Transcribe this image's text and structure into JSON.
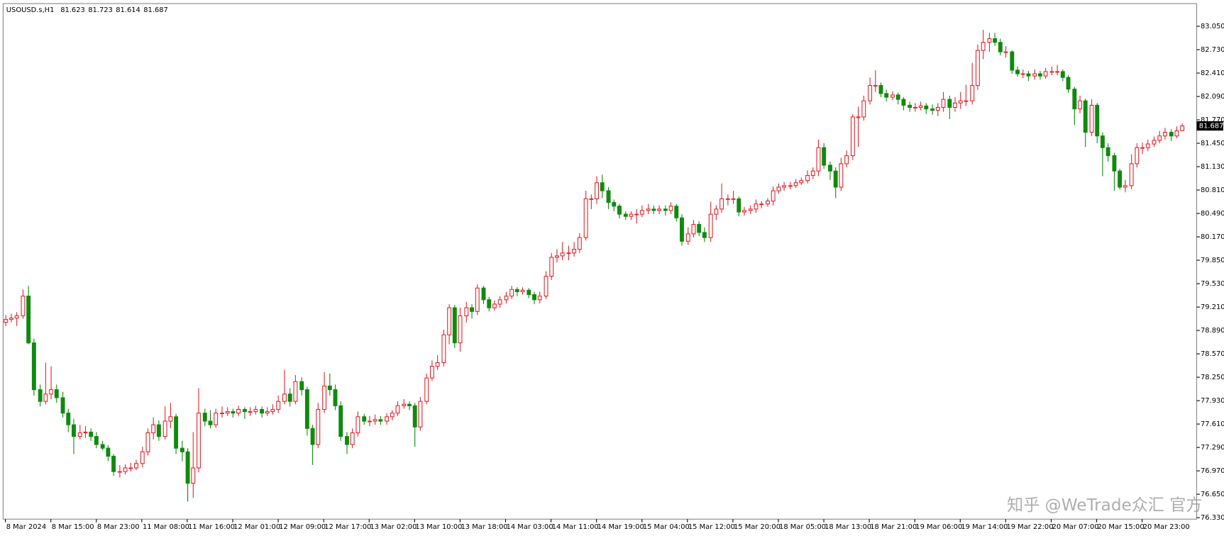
{
  "chart_data": {
    "type": "candlestick",
    "symbol": "USOUSD.s,H1",
    "header_ohlc": [
      81.623,
      81.723,
      81.614,
      81.687
    ],
    "last_price": 81.687,
    "watermark": "知乎 @WeTrade众汇 官方",
    "up_color": "#e0262d",
    "down_color": "#0f8a0f",
    "grid": false,
    "ylim": [
      76.32,
      83.36
    ],
    "yticks": [
      {
        "value": 76.33,
        "label": "76.330"
      },
      {
        "value": 76.65,
        "label": "76.650"
      },
      {
        "value": 76.97,
        "label": "76.970"
      },
      {
        "value": 77.29,
        "label": "77.290"
      },
      {
        "value": 77.61,
        "label": "77.610"
      },
      {
        "value": 77.93,
        "label": "77.930"
      },
      {
        "value": 78.25,
        "label": "78.250"
      },
      {
        "value": 78.57,
        "label": "78.570"
      },
      {
        "value": 78.89,
        "label": "78.890"
      },
      {
        "value": 79.21,
        "label": "79.210"
      },
      {
        "value": 79.53,
        "label": "79.530"
      },
      {
        "value": 79.85,
        "label": "79.850"
      },
      {
        "value": 80.17,
        "label": "80.170"
      },
      {
        "value": 80.49,
        "label": "80.490"
      },
      {
        "value": 80.81,
        "label": "80.810"
      },
      {
        "value": 81.13,
        "label": "81.130"
      },
      {
        "value": 81.45,
        "label": "81.450"
      },
      {
        "value": 81.77,
        "label": "81.770"
      },
      {
        "value": 82.09,
        "label": "82.090"
      },
      {
        "value": 82.41,
        "label": "82.410"
      },
      {
        "value": 82.73,
        "label": "82.730"
      },
      {
        "value": 83.05,
        "label": "83.050"
      }
    ],
    "xlim": [
      -0.4,
      209.6
    ],
    "xticks": [
      {
        "value": 0,
        "label": "8 Mar 2024"
      },
      {
        "value": 8,
        "label": "8 Mar 15:00"
      },
      {
        "value": 16,
        "label": "8 Mar 23:00"
      },
      {
        "value": 24,
        "label": "11 Mar 08:00"
      },
      {
        "value": 32,
        "label": "11 Mar 16:00"
      },
      {
        "value": 40,
        "label": "12 Mar 01:00"
      },
      {
        "value": 48,
        "label": "12 Mar 09:00"
      },
      {
        "value": 56,
        "label": "12 Mar 17:00"
      },
      {
        "value": 64,
        "label": "13 Mar 02:00"
      },
      {
        "value": 72,
        "label": "13 Mar 10:00"
      },
      {
        "value": 80,
        "label": "13 Mar 18:00"
      },
      {
        "value": 88,
        "label": "14 Mar 03:00"
      },
      {
        "value": 96,
        "label": "14 Mar 11:00"
      },
      {
        "value": 104,
        "label": "14 Mar 19:00"
      },
      {
        "value": 112,
        "label": "15 Mar 04:00"
      },
      {
        "value": 120,
        "label": "15 Mar 12:00"
      },
      {
        "value": 128,
        "label": "15 Mar 20:00"
      },
      {
        "value": 136,
        "label": "18 Mar 05:00"
      },
      {
        "value": 144,
        "label": "18 Mar 13:00"
      },
      {
        "value": 152,
        "label": "18 Mar 21:00"
      },
      {
        "value": 160,
        "label": "19 Mar 06:00"
      },
      {
        "value": 168,
        "label": "19 Mar 14:00"
      },
      {
        "value": 176,
        "label": "19 Mar 22:00"
      },
      {
        "value": 184,
        "label": "20 Mar 07:00"
      },
      {
        "value": 192,
        "label": "20 Mar 15:00"
      },
      {
        "value": 200,
        "label": "20 Mar 23:00"
      }
    ],
    "ohlc": [
      [
        79.0,
        79.1,
        78.95,
        79.04
      ],
      [
        79.04,
        79.12,
        79.0,
        79.06
      ],
      [
        79.06,
        79.14,
        78.95,
        79.09
      ],
      [
        79.09,
        79.45,
        79.05,
        79.36
      ],
      [
        79.36,
        79.5,
        78.7,
        78.72
      ],
      [
        78.72,
        78.78,
        78.0,
        78.08
      ],
      [
        78.08,
        78.15,
        77.85,
        77.92
      ],
      [
        77.92,
        78.45,
        77.88,
        78.02
      ],
      [
        78.02,
        78.4,
        77.95,
        78.08
      ],
      [
        78.08,
        78.15,
        77.9,
        77.97
      ],
      [
        77.97,
        78.05,
        77.7,
        77.76
      ],
      [
        77.76,
        77.82,
        77.5,
        77.6
      ],
      [
        77.6,
        77.68,
        77.2,
        77.44
      ],
      [
        77.44,
        77.6,
        77.4,
        77.49
      ],
      [
        77.49,
        77.58,
        77.42,
        77.5
      ],
      [
        77.5,
        77.55,
        77.38,
        77.44
      ],
      [
        77.44,
        77.5,
        77.28,
        77.33
      ],
      [
        77.33,
        77.38,
        77.25,
        77.28
      ],
      [
        77.28,
        77.32,
        77.1,
        77.17
      ],
      [
        77.17,
        77.2,
        76.9,
        76.96
      ],
      [
        76.96,
        77.05,
        76.88,
        76.96
      ],
      [
        76.96,
        77.06,
        76.92,
        77.01
      ],
      [
        77.01,
        77.08,
        76.96,
        77.01
      ],
      [
        77.01,
        77.12,
        76.98,
        77.07
      ],
      [
        77.07,
        77.3,
        77.02,
        77.23
      ],
      [
        77.23,
        77.55,
        77.18,
        77.49
      ],
      [
        77.49,
        77.7,
        77.4,
        77.6
      ],
      [
        77.6,
        77.66,
        77.38,
        77.44
      ],
      [
        77.44,
        77.85,
        77.4,
        77.65
      ],
      [
        77.65,
        77.9,
        77.55,
        77.71
      ],
      [
        77.71,
        77.75,
        77.2,
        77.28
      ],
      [
        77.28,
        77.38,
        77.1,
        77.23
      ],
      [
        77.23,
        77.28,
        76.55,
        76.8
      ],
      [
        76.8,
        77.5,
        76.6,
        77.01
      ],
      [
        77.01,
        78.1,
        76.95,
        77.76
      ],
      [
        77.76,
        77.82,
        77.58,
        77.65
      ],
      [
        77.65,
        77.8,
        77.55,
        77.6
      ],
      [
        77.6,
        77.82,
        77.56,
        77.76
      ],
      [
        77.76,
        77.85,
        77.7,
        77.76
      ],
      [
        77.76,
        77.84,
        77.72,
        77.78
      ],
      [
        77.78,
        77.82,
        77.7,
        77.76
      ],
      [
        77.76,
        77.86,
        77.72,
        77.81
      ],
      [
        77.81,
        77.84,
        77.68,
        77.78
      ],
      [
        77.78,
        77.84,
        77.72,
        77.78
      ],
      [
        77.78,
        77.86,
        77.74,
        77.81
      ],
      [
        77.81,
        77.85,
        77.7,
        77.76
      ],
      [
        77.76,
        77.84,
        77.72,
        77.78
      ],
      [
        77.78,
        77.88,
        77.74,
        77.81
      ],
      [
        77.81,
        78.0,
        77.76,
        77.92
      ],
      [
        77.92,
        78.35,
        77.88,
        78.02
      ],
      [
        78.02,
        78.1,
        77.85,
        77.92
      ],
      [
        77.92,
        78.28,
        77.88,
        78.19
      ],
      [
        78.19,
        78.25,
        78.0,
        78.08
      ],
      [
        78.08,
        78.12,
        77.45,
        77.55
      ],
      [
        77.55,
        77.6,
        77.05,
        77.33
      ],
      [
        77.33,
        77.9,
        77.28,
        77.81
      ],
      [
        77.81,
        78.32,
        77.76,
        78.13
      ],
      [
        78.13,
        78.3,
        78.0,
        78.08
      ],
      [
        78.08,
        78.15,
        77.8,
        77.86
      ],
      [
        77.86,
        77.92,
        77.38,
        77.44
      ],
      [
        77.44,
        77.5,
        77.2,
        77.33
      ],
      [
        77.33,
        77.55,
        77.28,
        77.49
      ],
      [
        77.49,
        77.78,
        77.44,
        77.71
      ],
      [
        77.71,
        77.75,
        77.6,
        77.65
      ],
      [
        77.65,
        77.72,
        77.58,
        77.65
      ],
      [
        77.65,
        77.74,
        77.6,
        77.67
      ],
      [
        77.67,
        77.72,
        77.6,
        77.65
      ],
      [
        77.65,
        77.76,
        77.6,
        77.71
      ],
      [
        77.71,
        77.8,
        77.66,
        77.76
      ],
      [
        77.76,
        77.92,
        77.72,
        77.86
      ],
      [
        77.86,
        77.95,
        77.82,
        77.88
      ],
      [
        77.88,
        77.92,
        77.8,
        77.86
      ],
      [
        77.86,
        77.9,
        77.3,
        77.57
      ],
      [
        77.57,
        77.98,
        77.52,
        77.92
      ],
      [
        77.92,
        78.3,
        77.88,
        78.24
      ],
      [
        78.24,
        78.48,
        78.2,
        78.4
      ],
      [
        78.4,
        78.55,
        78.35,
        78.45
      ],
      [
        78.45,
        78.9,
        78.4,
        78.83
      ],
      [
        78.83,
        79.25,
        78.7,
        79.2
      ],
      [
        79.2,
        79.24,
        78.65,
        78.72
      ],
      [
        78.72,
        79.2,
        78.6,
        79.09
      ],
      [
        79.09,
        79.28,
        79.0,
        79.2
      ],
      [
        79.2,
        79.25,
        79.05,
        79.15
      ],
      [
        79.15,
        79.52,
        79.1,
        79.47
      ],
      [
        79.47,
        79.5,
        79.25,
        79.31
      ],
      [
        79.31,
        79.35,
        79.15,
        79.2
      ],
      [
        79.2,
        79.3,
        79.16,
        79.25
      ],
      [
        79.25,
        79.36,
        79.2,
        79.31
      ],
      [
        79.31,
        79.42,
        79.26,
        79.36
      ],
      [
        79.36,
        79.5,
        79.32,
        79.45
      ],
      [
        79.45,
        79.48,
        79.36,
        79.42
      ],
      [
        79.42,
        79.48,
        79.38,
        79.44
      ],
      [
        79.44,
        79.47,
        79.33,
        79.38
      ],
      [
        79.38,
        79.42,
        79.25,
        79.31
      ],
      [
        79.31,
        79.42,
        79.26,
        79.36
      ],
      [
        79.36,
        79.7,
        79.32,
        79.63
      ],
      [
        79.63,
        79.95,
        79.58,
        79.89
      ],
      [
        79.89,
        80.0,
        79.82,
        79.91
      ],
      [
        79.91,
        80.1,
        79.85,
        79.95
      ],
      [
        79.95,
        80.05,
        79.85,
        79.95
      ],
      [
        79.95,
        80.1,
        79.9,
        80.0
      ],
      [
        80.0,
        80.22,
        79.95,
        80.16
      ],
      [
        80.16,
        80.8,
        80.12,
        80.69
      ],
      [
        80.69,
        80.75,
        80.55,
        80.69
      ],
      [
        80.69,
        81.0,
        80.62,
        80.91
      ],
      [
        80.91,
        81.02,
        80.7,
        80.8
      ],
      [
        80.8,
        80.85,
        80.55,
        80.64
      ],
      [
        80.64,
        80.68,
        80.52,
        80.59
      ],
      [
        80.59,
        80.62,
        80.42,
        80.48
      ],
      [
        80.48,
        80.52,
        80.4,
        80.45
      ],
      [
        80.45,
        80.52,
        80.4,
        80.48
      ],
      [
        80.48,
        80.55,
        80.35,
        80.48
      ],
      [
        80.48,
        80.6,
        80.44,
        80.53
      ],
      [
        80.53,
        80.62,
        80.48,
        80.55
      ],
      [
        80.55,
        80.6,
        80.48,
        80.53
      ],
      [
        80.53,
        80.6,
        80.48,
        80.55
      ],
      [
        80.55,
        80.6,
        80.46,
        80.53
      ],
      [
        80.53,
        80.64,
        80.48,
        80.59
      ],
      [
        80.59,
        80.62,
        80.38,
        80.43
      ],
      [
        80.43,
        80.48,
        80.05,
        80.11
      ],
      [
        80.11,
        80.3,
        80.06,
        80.21
      ],
      [
        80.21,
        80.4,
        80.16,
        80.34
      ],
      [
        80.34,
        80.38,
        80.18,
        80.23
      ],
      [
        80.23,
        80.3,
        80.1,
        80.16
      ],
      [
        80.16,
        80.65,
        80.1,
        80.48
      ],
      [
        80.48,
        80.6,
        80.4,
        80.55
      ],
      [
        80.55,
        80.9,
        80.5,
        80.69
      ],
      [
        80.69,
        80.75,
        80.6,
        80.69
      ],
      [
        80.69,
        80.8,
        80.62,
        80.69
      ],
      [
        80.69,
        80.72,
        80.45,
        80.51
      ],
      [
        80.51,
        80.58,
        80.46,
        80.53
      ],
      [
        80.53,
        80.6,
        80.48,
        80.55
      ],
      [
        80.55,
        80.68,
        80.5,
        80.62
      ],
      [
        80.62,
        80.66,
        80.56,
        80.62
      ],
      [
        80.62,
        80.7,
        80.58,
        80.66
      ],
      [
        80.66,
        80.86,
        80.6,
        80.8
      ],
      [
        80.8,
        80.9,
        80.76,
        80.85
      ],
      [
        80.85,
        80.92,
        80.8,
        80.87
      ],
      [
        80.87,
        80.92,
        80.82,
        80.87
      ],
      [
        80.87,
        80.96,
        80.84,
        80.91
      ],
      [
        80.91,
        80.98,
        80.88,
        80.94
      ],
      [
        80.94,
        81.08,
        80.9,
        81.01
      ],
      [
        81.01,
        81.12,
        80.96,
        81.07
      ],
      [
        81.07,
        81.5,
        81.0,
        81.39
      ],
      [
        81.39,
        81.45,
        81.1,
        81.15
      ],
      [
        81.15,
        81.2,
        80.95,
        81.07
      ],
      [
        81.07,
        81.12,
        80.7,
        80.85
      ],
      [
        80.85,
        81.25,
        80.8,
        81.17
      ],
      [
        81.17,
        81.35,
        81.12,
        81.28
      ],
      [
        81.28,
        81.85,
        81.22,
        81.81
      ],
      [
        81.81,
        81.95,
        81.4,
        81.81
      ],
      [
        81.81,
        82.1,
        81.76,
        82.03
      ],
      [
        82.03,
        82.35,
        81.98,
        82.24
      ],
      [
        82.24,
        82.45,
        82.15,
        82.24
      ],
      [
        82.24,
        82.28,
        82.08,
        82.13
      ],
      [
        82.13,
        82.18,
        82.02,
        82.08
      ],
      [
        82.08,
        82.16,
        82.04,
        82.11
      ],
      [
        82.11,
        82.14,
        81.98,
        82.05
      ],
      [
        82.05,
        82.08,
        81.9,
        81.97
      ],
      [
        81.97,
        82.02,
        81.88,
        81.94
      ],
      [
        81.94,
        82.0,
        81.88,
        81.94
      ],
      [
        81.94,
        82.02,
        81.9,
        81.96
      ],
      [
        81.96,
        82.0,
        81.85,
        81.92
      ],
      [
        81.92,
        81.98,
        81.84,
        81.9
      ],
      [
        81.9,
        82.0,
        81.82,
        81.94
      ],
      [
        81.94,
        82.15,
        81.88,
        82.05
      ],
      [
        82.05,
        82.1,
        81.78,
        81.94
      ],
      [
        81.94,
        82.08,
        81.88,
        82.0
      ],
      [
        82.0,
        82.15,
        81.92,
        82.03
      ],
      [
        82.03,
        82.25,
        81.96,
        82.03
      ],
      [
        82.03,
        82.55,
        81.98,
        82.24
      ],
      [
        82.24,
        82.8,
        82.18,
        82.72
      ],
      [
        82.72,
        83.0,
        82.6,
        82.83
      ],
      [
        82.83,
        82.96,
        82.7,
        82.88
      ],
      [
        82.88,
        82.96,
        82.78,
        82.83
      ],
      [
        82.83,
        82.88,
        82.65,
        82.7
      ],
      [
        82.7,
        82.78,
        82.62,
        82.7
      ],
      [
        82.7,
        82.72,
        82.4,
        82.45
      ],
      [
        82.45,
        82.5,
        82.36,
        82.4
      ],
      [
        82.4,
        82.46,
        82.34,
        82.4
      ],
      [
        82.4,
        82.44,
        82.3,
        82.37
      ],
      [
        82.37,
        82.46,
        82.32,
        82.4
      ],
      [
        82.4,
        82.44,
        82.32,
        82.37
      ],
      [
        82.37,
        82.48,
        82.33,
        82.43
      ],
      [
        82.43,
        82.5,
        82.38,
        82.43
      ],
      [
        82.43,
        82.52,
        82.38,
        82.43
      ],
      [
        82.43,
        82.46,
        82.3,
        82.35
      ],
      [
        82.35,
        82.38,
        82.14,
        82.19
      ],
      [
        82.19,
        82.22,
        81.7,
        81.92
      ],
      [
        81.92,
        82.1,
        81.86,
        82.03
      ],
      [
        82.03,
        82.06,
        81.4,
        81.6
      ],
      [
        81.6,
        82.05,
        81.55,
        81.97
      ],
      [
        81.97,
        82.0,
        81.45,
        81.55
      ],
      [
        81.55,
        81.6,
        81.0,
        81.39
      ],
      [
        81.39,
        81.45,
        81.2,
        81.28
      ],
      [
        81.28,
        81.32,
        80.8,
        81.07
      ],
      [
        81.07,
        81.1,
        80.82,
        80.85
      ],
      [
        80.85,
        80.95,
        80.78,
        80.87
      ],
      [
        80.87,
        81.3,
        80.82,
        81.17
      ],
      [
        81.17,
        81.45,
        81.12,
        81.39
      ],
      [
        81.39,
        81.46,
        81.3,
        81.39
      ],
      [
        81.39,
        81.5,
        81.34,
        81.44
      ],
      [
        81.44,
        81.54,
        81.4,
        81.49
      ],
      [
        81.49,
        81.62,
        81.45,
        81.55
      ],
      [
        81.55,
        81.66,
        81.5,
        81.6
      ],
      [
        81.6,
        81.64,
        81.48,
        81.55
      ],
      [
        81.55,
        81.68,
        81.52,
        81.62
      ],
      [
        81.623,
        81.723,
        81.614,
        81.687
      ]
    ]
  }
}
